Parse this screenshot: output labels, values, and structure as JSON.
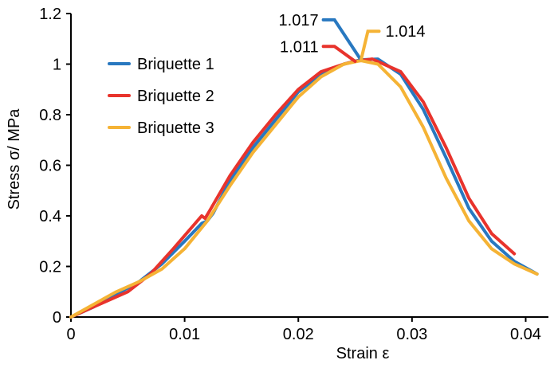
{
  "chart_data": {
    "type": "line",
    "title": "",
    "xlabel": "Strain ε",
    "ylabel": "Stress σ/ MPa",
    "xlim": [
      0,
      0.042
    ],
    "ylim": [
      0,
      1.2
    ],
    "x_ticks": [
      0,
      0.01,
      0.02,
      0.03,
      0.04
    ],
    "x_tick_labels": [
      "0",
      "0.01",
      "0.02",
      "0.03",
      "0.04"
    ],
    "y_ticks": [
      0,
      0.2,
      0.4,
      0.6,
      0.8,
      1.0,
      1.2
    ],
    "y_tick_labels": [
      "0",
      "0.2",
      "0.4",
      "0.6",
      "0.8",
      "1",
      "1.2"
    ],
    "grid": false,
    "legend_position": "upper-left",
    "series": [
      {
        "name": "Briquette 1",
        "color": "#2878c0",
        "x": [
          0,
          0.002,
          0.004,
          0.006,
          0.008,
          0.01,
          0.0115,
          0.012,
          0.0125,
          0.014,
          0.016,
          0.018,
          0.02,
          0.022,
          0.024,
          0.0255,
          0.027,
          0.029,
          0.031,
          0.033,
          0.035,
          0.037,
          0.039,
          0.041
        ],
        "y": [
          0,
          0.04,
          0.09,
          0.14,
          0.21,
          0.3,
          0.37,
          0.38,
          0.41,
          0.54,
          0.67,
          0.78,
          0.89,
          0.96,
          1.0,
          1.017,
          1.02,
          0.96,
          0.82,
          0.63,
          0.43,
          0.3,
          0.22,
          0.17
        ]
      },
      {
        "name": "Briquette 2",
        "color": "#e8332c",
        "x": [
          0,
          0.001,
          0.003,
          0.005,
          0.007,
          0.009,
          0.0115,
          0.0118,
          0.0122,
          0.014,
          0.016,
          0.018,
          0.02,
          0.022,
          0.024,
          0.025,
          0.0265,
          0.029,
          0.031,
          0.033,
          0.035,
          0.037,
          0.039
        ],
        "y": [
          0,
          0.02,
          0.06,
          0.1,
          0.17,
          0.27,
          0.4,
          0.39,
          0.42,
          0.56,
          0.69,
          0.8,
          0.9,
          0.97,
          1.0,
          1.011,
          1.02,
          0.97,
          0.85,
          0.67,
          0.47,
          0.33,
          0.25
        ]
      },
      {
        "name": "Briquette 3",
        "color": "#f5b335",
        "x": [
          0,
          0.002,
          0.004,
          0.006,
          0.008,
          0.01,
          0.012,
          0.014,
          0.016,
          0.018,
          0.02,
          0.022,
          0.024,
          0.0255,
          0.027,
          0.029,
          0.031,
          0.033,
          0.035,
          0.037,
          0.039,
          0.041
        ],
        "y": [
          0,
          0.05,
          0.1,
          0.14,
          0.19,
          0.27,
          0.38,
          0.52,
          0.65,
          0.76,
          0.87,
          0.95,
          1.0,
          1.014,
          1.0,
          0.91,
          0.75,
          0.55,
          0.38,
          0.27,
          0.21,
          0.17
        ]
      }
    ],
    "annotations": [
      {
        "text": "1.017",
        "series": 0,
        "point": [
          0.0255,
          1.017
        ],
        "label_at": [
          0.0222,
          1.175
        ]
      },
      {
        "text": "1.011",
        "series": 1,
        "point": [
          0.025,
          1.011
        ],
        "label_at": [
          0.0222,
          1.07
        ]
      },
      {
        "text": "1.014",
        "series": 2,
        "point": [
          0.0255,
          1.014
        ],
        "label_at": [
          0.0271,
          1.13
        ]
      }
    ]
  }
}
